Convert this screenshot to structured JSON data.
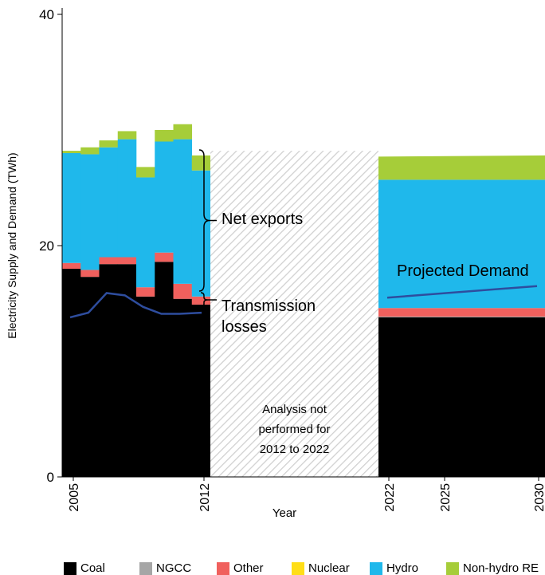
{
  "chart_data": {
    "type": "area",
    "ylabel": "Electricity Supply and Demand (TWh)",
    "xlabel": "Year",
    "ylim": [
      0,
      40
    ],
    "y_ticks": [
      "0",
      "20",
      "40"
    ],
    "x_ticks": [
      "2005",
      "2012",
      "2022",
      "2025",
      "2030"
    ],
    "colors": {
      "Coal": "#000000",
      "NGCC": "#a6a6a6",
      "Other": "#f0605d",
      "Nuclear": "#ffde17",
      "Hydro": "#1fb8eb",
      "Non-hydro RE": "#a6cd39",
      "demand_line": "#2e4d9e",
      "hatch": "#cfcfcf"
    },
    "legend": [
      "Coal",
      "NGCC",
      "Other",
      "Nuclear",
      "Hydro",
      "Non-hydro RE"
    ],
    "historical": {
      "years": [
        2005,
        2006,
        2007,
        2008,
        2009,
        2010,
        2011,
        2012
      ],
      "Coal": [
        18.0,
        17.3,
        18.4,
        18.4,
        15.6,
        18.6,
        15.4,
        14.9
      ],
      "Other": [
        0.5,
        0.6,
        0.6,
        0.6,
        0.8,
        0.8,
        1.3,
        0.7
      ],
      "Hydro": [
        9.5,
        10.0,
        9.5,
        10.2,
        9.5,
        9.6,
        12.5,
        10.9
      ],
      "Non-hydro RE": [
        0.2,
        0.6,
        0.6,
        0.7,
        0.9,
        1.0,
        1.3,
        1.3
      ],
      "Demand": [
        13.8,
        14.2,
        15.9,
        15.7,
        14.7,
        14.1,
        14.1,
        14.2
      ]
    },
    "projected": {
      "years": [
        2022,
        2030
      ],
      "Coal": [
        13.8,
        13.8
      ],
      "Other": [
        0.8,
        0.8
      ],
      "Hydro": [
        11.1,
        11.1
      ],
      "Non-hydro RE": [
        2.0,
        2.1
      ],
      "Demand": [
        15.5,
        16.5
      ]
    },
    "annotations": {
      "net_exports": "Net exports",
      "transmission_losses_line1": "Transmission",
      "transmission_losses_line2": "losses",
      "projected_demand": "Projected Demand",
      "gap_line1": "Analysis not",
      "gap_line2": "performed for",
      "gap_line3": "2012 to 2022"
    }
  }
}
